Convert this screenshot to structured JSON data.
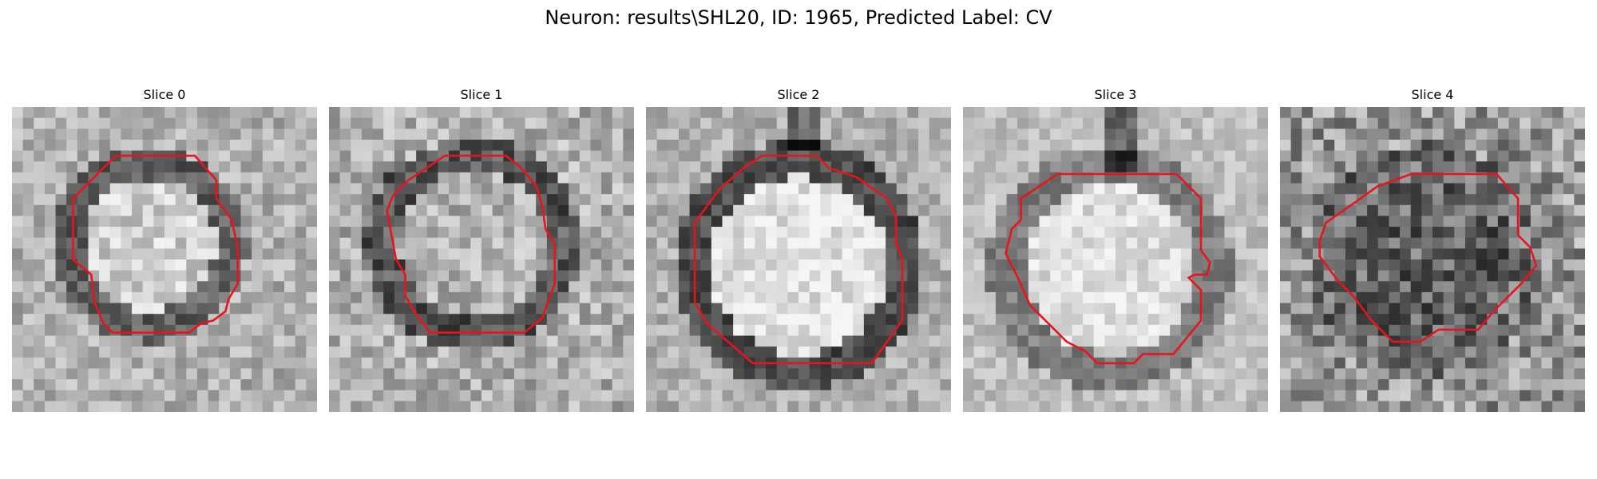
{
  "figure": {
    "title": "Neuron: results\\SHL20, ID: 1965, Predicted Label: CV"
  },
  "panels": [
    {
      "title": "Slice 0",
      "image": "grayscale-em-patch",
      "contour_color": "#e8141c",
      "contour": [
        [
          0.34,
          0.16
        ],
        [
          0.6,
          0.16
        ],
        [
          0.67,
          0.24
        ],
        [
          0.67,
          0.3
        ],
        [
          0.72,
          0.37
        ],
        [
          0.74,
          0.46
        ],
        [
          0.74,
          0.58
        ],
        [
          0.71,
          0.63
        ],
        [
          0.7,
          0.67
        ],
        [
          0.66,
          0.7
        ],
        [
          0.62,
          0.71
        ],
        [
          0.58,
          0.74
        ],
        [
          0.33,
          0.74
        ],
        [
          0.3,
          0.71
        ],
        [
          0.27,
          0.64
        ],
        [
          0.26,
          0.55
        ],
        [
          0.2,
          0.5
        ],
        [
          0.2,
          0.3
        ],
        [
          0.26,
          0.24
        ]
      ]
    },
    {
      "title": "Slice 1",
      "image": "grayscale-em-patch",
      "contour_color": "#e8141c",
      "contour": [
        [
          0.38,
          0.16
        ],
        [
          0.58,
          0.16
        ],
        [
          0.63,
          0.2
        ],
        [
          0.68,
          0.26
        ],
        [
          0.7,
          0.33
        ],
        [
          0.71,
          0.4
        ],
        [
          0.74,
          0.45
        ],
        [
          0.74,
          0.58
        ],
        [
          0.72,
          0.63
        ],
        [
          0.7,
          0.69
        ],
        [
          0.64,
          0.74
        ],
        [
          0.56,
          0.74
        ],
        [
          0.33,
          0.74
        ],
        [
          0.28,
          0.67
        ],
        [
          0.25,
          0.62
        ],
        [
          0.25,
          0.55
        ],
        [
          0.22,
          0.5
        ],
        [
          0.19,
          0.34
        ],
        [
          0.21,
          0.29
        ],
        [
          0.26,
          0.24
        ]
      ]
    },
    {
      "title": "Slice 2",
      "image": "grayscale-em-patch",
      "contour_color": "#e8141c",
      "contour": [
        [
          0.38,
          0.16
        ],
        [
          0.56,
          0.16
        ],
        [
          0.6,
          0.2
        ],
        [
          0.69,
          0.23
        ],
        [
          0.79,
          0.3
        ],
        [
          0.82,
          0.36
        ],
        [
          0.82,
          0.45
        ],
        [
          0.84,
          0.5
        ],
        [
          0.84,
          0.7
        ],
        [
          0.74,
          0.84
        ],
        [
          0.35,
          0.84
        ],
        [
          0.2,
          0.71
        ],
        [
          0.16,
          0.64
        ],
        [
          0.16,
          0.38
        ],
        [
          0.24,
          0.27
        ],
        [
          0.32,
          0.2
        ]
      ]
    },
    {
      "title": "Slice 3",
      "image": "grayscale-em-patch",
      "contour_color": "#e8141c",
      "contour": [
        [
          0.31,
          0.22
        ],
        [
          0.7,
          0.22
        ],
        [
          0.78,
          0.3
        ],
        [
          0.78,
          0.47
        ],
        [
          0.81,
          0.51
        ],
        [
          0.8,
          0.55
        ],
        [
          0.76,
          0.55
        ],
        [
          0.74,
          0.56
        ],
        [
          0.78,
          0.6
        ],
        [
          0.78,
          0.7
        ],
        [
          0.69,
          0.81
        ],
        [
          0.59,
          0.81
        ],
        [
          0.56,
          0.84
        ],
        [
          0.44,
          0.84
        ],
        [
          0.4,
          0.8
        ],
        [
          0.34,
          0.77
        ],
        [
          0.22,
          0.65
        ],
        [
          0.18,
          0.56
        ],
        [
          0.14,
          0.48
        ],
        [
          0.16,
          0.4
        ],
        [
          0.19,
          0.37
        ],
        [
          0.19,
          0.3
        ]
      ]
    },
    {
      "title": "Slice 4",
      "image": "grayscale-em-patch",
      "contour_color": "#e8141c",
      "contour": [
        [
          0.32,
          0.26
        ],
        [
          0.43,
          0.22
        ],
        [
          0.71,
          0.22
        ],
        [
          0.78,
          0.3
        ],
        [
          0.78,
          0.42
        ],
        [
          0.82,
          0.46
        ],
        [
          0.84,
          0.52
        ],
        [
          0.79,
          0.58
        ],
        [
          0.7,
          0.67
        ],
        [
          0.65,
          0.73
        ],
        [
          0.52,
          0.73
        ],
        [
          0.46,
          0.77
        ],
        [
          0.37,
          0.77
        ],
        [
          0.3,
          0.7
        ],
        [
          0.24,
          0.62
        ],
        [
          0.19,
          0.57
        ],
        [
          0.13,
          0.49
        ],
        [
          0.13,
          0.44
        ],
        [
          0.15,
          0.38
        ],
        [
          0.25,
          0.31
        ]
      ]
    }
  ]
}
